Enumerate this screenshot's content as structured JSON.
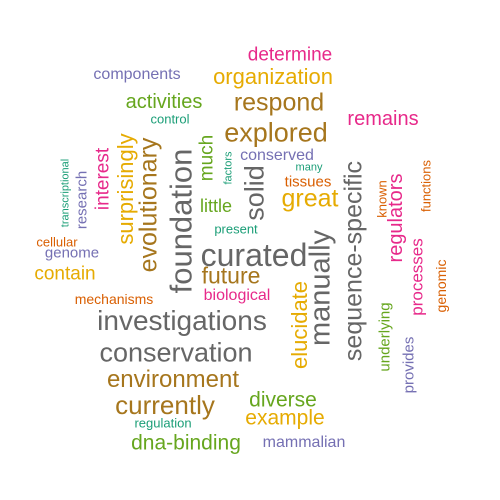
{
  "palette": {
    "teal": "#1b9e77",
    "orange": "#d95f02",
    "purple": "#7570b3",
    "magenta": "#e7298a",
    "green": "#66a61e",
    "gold": "#e6ab02",
    "brown": "#a6761d",
    "gray": "#666666"
  },
  "words": [
    {
      "text": "determine",
      "color": "magenta"
    },
    {
      "text": "components",
      "color": "purple"
    },
    {
      "text": "organization",
      "color": "gold"
    },
    {
      "text": "activities",
      "color": "green"
    },
    {
      "text": "respond",
      "color": "brown"
    },
    {
      "text": "control",
      "color": "teal"
    },
    {
      "text": "remains",
      "color": "magenta"
    },
    {
      "text": "explored",
      "color": "brown"
    },
    {
      "text": "conserved",
      "color": "purple"
    },
    {
      "text": "many",
      "color": "teal"
    },
    {
      "text": "tissues",
      "color": "orange"
    },
    {
      "text": "great",
      "color": "gold"
    },
    {
      "text": "little",
      "color": "green"
    },
    {
      "text": "present",
      "color": "teal"
    },
    {
      "text": "curated",
      "color": "gray"
    },
    {
      "text": "future",
      "color": "brown"
    },
    {
      "text": "contain",
      "color": "gold"
    },
    {
      "text": "cellular",
      "color": "orange"
    },
    {
      "text": "genome",
      "color": "purple"
    },
    {
      "text": "mechanisms",
      "color": "orange"
    },
    {
      "text": "biological",
      "color": "magenta"
    },
    {
      "text": "investigations",
      "color": "gray"
    },
    {
      "text": "conservation",
      "color": "gray"
    },
    {
      "text": "environment",
      "color": "brown"
    },
    {
      "text": "currently",
      "color": "brown"
    },
    {
      "text": "diverse",
      "color": "green"
    },
    {
      "text": "example",
      "color": "gold"
    },
    {
      "text": "regulation",
      "color": "teal"
    },
    {
      "text": "dna-binding",
      "color": "green"
    },
    {
      "text": "mammalian",
      "color": "purple"
    },
    {
      "text": "transcriptional",
      "color": "teal"
    },
    {
      "text": "research",
      "color": "purple"
    },
    {
      "text": "interest",
      "color": "magenta"
    },
    {
      "text": "surprisingly",
      "color": "gold"
    },
    {
      "text": "evolutionary",
      "color": "brown"
    },
    {
      "text": "much",
      "color": "green"
    },
    {
      "text": "factors",
      "color": "teal"
    },
    {
      "text": "foundation",
      "color": "gray"
    },
    {
      "text": "solid",
      "color": "gray"
    },
    {
      "text": "manually",
      "color": "gray"
    },
    {
      "text": "sequence-specific",
      "color": "gray"
    },
    {
      "text": "elucidate",
      "color": "gold"
    },
    {
      "text": "regulators",
      "color": "magenta"
    },
    {
      "text": "known",
      "color": "orange"
    },
    {
      "text": "functions",
      "color": "orange"
    },
    {
      "text": "underlying",
      "color": "green"
    },
    {
      "text": "processes",
      "color": "magenta"
    },
    {
      "text": "genomic",
      "color": "orange"
    },
    {
      "text": "provides",
      "color": "purple"
    }
  ]
}
